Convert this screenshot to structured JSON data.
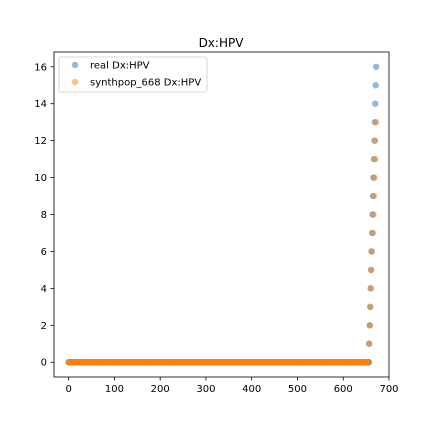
{
  "chart_data": {
    "type": "scatter",
    "title": "Dx:HPV",
    "xlabel": "",
    "ylabel": "",
    "xlim": [
      -32,
      700
    ],
    "ylim": [
      -0.8,
      16.8
    ],
    "xticks": [
      0,
      100,
      200,
      300,
      400,
      500,
      600,
      700
    ],
    "yticks": [
      0,
      2,
      4,
      6,
      8,
      10,
      12,
      14,
      16
    ],
    "legend_position": "upper-left",
    "grid": false,
    "series": [
      {
        "name": "real Dx:HPV",
        "color": "#1f77b4",
        "alpha": 0.5,
        "zero_run": [
          0,
          656
        ],
        "points": [
          [
            657,
            1
          ],
          [
            658,
            2
          ],
          [
            659,
            3
          ],
          [
            660,
            4
          ],
          [
            661,
            5
          ],
          [
            662,
            6
          ],
          [
            663,
            7
          ],
          [
            664,
            8
          ],
          [
            665,
            9
          ],
          [
            666,
            10
          ],
          [
            667,
            11
          ],
          [
            668,
            12
          ],
          [
            669,
            13
          ],
          [
            670,
            14
          ],
          [
            671,
            15
          ],
          [
            672,
            16
          ]
        ]
      },
      {
        "name": "synthpop_668 Dx:HPV",
        "color": "#ff7f0e",
        "alpha": 0.5,
        "zero_run": [
          0,
          654
        ],
        "points": [
          [
            656,
            1
          ],
          [
            658,
            2
          ],
          [
            659,
            3
          ],
          [
            660,
            4
          ],
          [
            661,
            5
          ],
          [
            662,
            6
          ],
          [
            665,
            7
          ],
          [
            666,
            8
          ],
          [
            667,
            9
          ],
          [
            668,
            10
          ],
          [
            670,
            11
          ],
          [
            670,
            12
          ],
          [
            672,
            13
          ]
        ]
      }
    ]
  }
}
